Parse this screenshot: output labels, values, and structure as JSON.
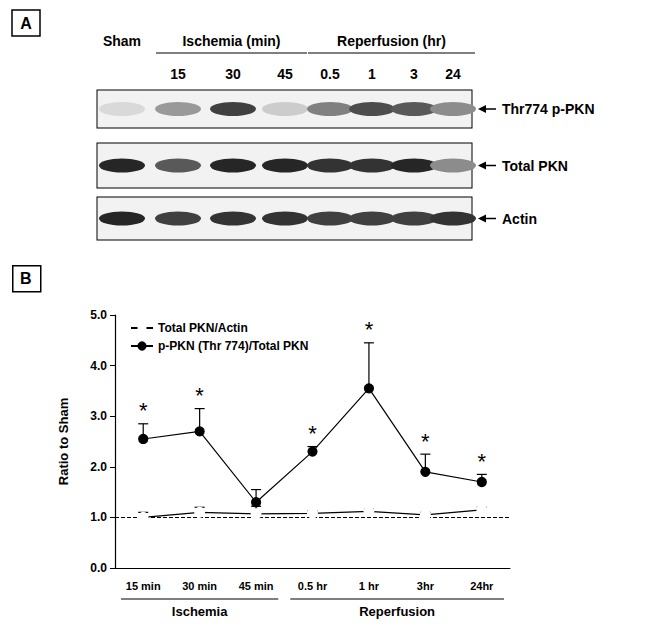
{
  "panel_a": {
    "label": "A",
    "lanes": [
      "Sham",
      "15",
      "30",
      "45",
      "0.5",
      "1",
      "3",
      "24"
    ],
    "lane_groups": [
      {
        "label": "Ischemia (min)",
        "start": 1,
        "end": 3
      },
      {
        "label": "Reperfusion (hr)",
        "start": 4,
        "end": 7
      }
    ],
    "blots": [
      {
        "label": "Thr774 p-PKN",
        "band_intensity": [
          0.15,
          0.4,
          0.75,
          0.2,
          0.5,
          0.7,
          0.65,
          0.45
        ]
      },
      {
        "label": "Total PKN",
        "band_intensity": [
          0.85,
          0.65,
          0.85,
          0.85,
          0.8,
          0.8,
          0.85,
          0.45
        ]
      },
      {
        "label": "Actin",
        "band_intensity": [
          0.85,
          0.75,
          0.8,
          0.8,
          0.75,
          0.75,
          0.75,
          0.8
        ]
      }
    ]
  },
  "panel_b_label": "B",
  "chart_data": {
    "type": "line",
    "categories": [
      "15 min",
      "30 min",
      "45 min",
      "0.5 hr",
      "1 hr",
      "3hr",
      "24hr"
    ],
    "category_groups": [
      {
        "label": "Ischemia",
        "start": 0,
        "end": 2
      },
      {
        "label": "Reperfusion",
        "start": 3,
        "end": 6
      }
    ],
    "y_label": "Ratio to Sham",
    "ylim": [
      0,
      5
    ],
    "yticks": [
      {
        "value": 0,
        "label": "0.0"
      },
      {
        "value": 1,
        "label": "1.0"
      },
      {
        "value": 2,
        "label": "2.0"
      },
      {
        "value": 3,
        "label": "3.0"
      },
      {
        "value": 4,
        "label": "4.0"
      },
      {
        "value": 5,
        "label": "5.0"
      }
    ],
    "reference_line": 1,
    "legend": "upper left",
    "grid": false,
    "series": [
      {
        "name": "Total PKN/Actin",
        "color": "#000000",
        "marker": "open_circle",
        "line_style": "solid",
        "values": [
          1.0,
          1.1,
          1.07,
          1.08,
          1.12,
          1.05,
          1.15
        ],
        "errors": [
          0.1,
          0.1,
          0.15,
          0.05,
          0.05,
          0.05,
          0.05
        ]
      },
      {
        "name": "p-PKN (Thr 774)/Total PKN",
        "color": "#000000",
        "marker": "circle",
        "line_style": "solid",
        "values": [
          2.55,
          2.7,
          1.3,
          2.3,
          3.55,
          1.9,
          1.7
        ],
        "errors": [
          0.3,
          0.45,
          0.25,
          0.1,
          0.9,
          0.35,
          0.15
        ],
        "significance": [
          "*",
          "*",
          null,
          "*",
          "*",
          "*",
          "*"
        ]
      }
    ]
  }
}
